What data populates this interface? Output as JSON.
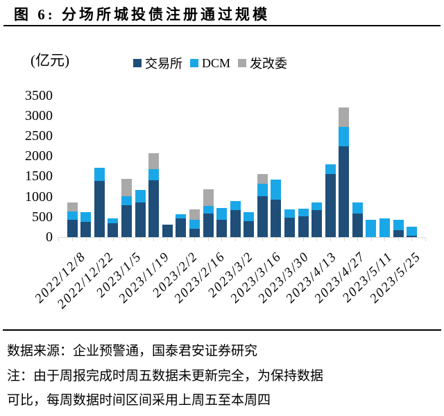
{
  "title": "图 6: 分场所城投债注册通过规模",
  "unit_label": "(亿元)",
  "legend": {
    "items": [
      {
        "label": "交易所",
        "color": "#1F4E79"
      },
      {
        "label": "DCM",
        "color": "#1AA7E8"
      },
      {
        "label": "发改委",
        "color": "#A9A9A9"
      }
    ]
  },
  "chart_data": {
    "type": "bar",
    "stacked": true,
    "title": "分场所城投债注册通过规模",
    "ylabel": "(亿元)",
    "ylim": [
      0,
      3500
    ],
    "ytick_step": 500,
    "categories": [
      "2022/12/8",
      "2022/12/15",
      "2022/12/22",
      "2022/12/29",
      "2023/1/5",
      "2023/1/12",
      "2023/1/19",
      "2023/1/26",
      "2023/2/2",
      "2023/2/9",
      "2023/2/16",
      "2023/2/23",
      "2023/3/2",
      "2023/3/9",
      "2023/3/16",
      "2023/3/23",
      "2023/3/30",
      "2023/4/6",
      "2023/4/13",
      "2023/4/20",
      "2023/4/27",
      "2023/5/4",
      "2023/5/11",
      "2023/5/18",
      "2023/5/25",
      "2023/6/1"
    ],
    "series": [
      {
        "name": "交易所",
        "color": "#1F4E79",
        "values": [
          420,
          370,
          1380,
          350,
          780,
          860,
          1405,
          300,
          460,
          210,
          575,
          420,
          665,
          395,
          1010,
          920,
          480,
          520,
          665,
          1550,
          2250,
          575,
          0,
          0,
          175,
          35
        ]
      },
      {
        "name": "DCM",
        "color": "#1AA7E8",
        "values": [
          215,
          240,
          330,
          115,
          235,
          305,
          275,
          0,
          105,
          210,
          190,
          305,
          225,
          230,
          310,
          505,
          200,
          190,
          190,
          240,
          480,
          275,
          425,
          460,
          250,
          230
        ]
      },
      {
        "name": "发改委",
        "color": "#A9A9A9",
        "values": [
          215,
          0,
          0,
          0,
          420,
          0,
          385,
          0,
          0,
          270,
          420,
          0,
          0,
          0,
          230,
          0,
          0,
          0,
          0,
          0,
          480,
          0,
          0,
          0,
          0,
          0
        ]
      }
    ],
    "x_tick_labels": [
      "2022/12/8",
      "2022/12/22",
      "2023/1/5",
      "2023/1/19",
      "2023/2/2",
      "2023/2/16",
      "2023/3/2",
      "2023/3/16",
      "2023/3/30",
      "2023/4/13",
      "2023/4/27",
      "2023/5/11",
      "2023/5/25"
    ],
    "legend_position": "top",
    "grid": false
  },
  "footer": {
    "source": "数据来源：企业预警通，国泰君安证券研究",
    "note_line1": "注：由于周报完成时周五数据未更新完全，为保持数据",
    "note_line2": "可比，每周数据时间区间采用上周五至本周四"
  }
}
